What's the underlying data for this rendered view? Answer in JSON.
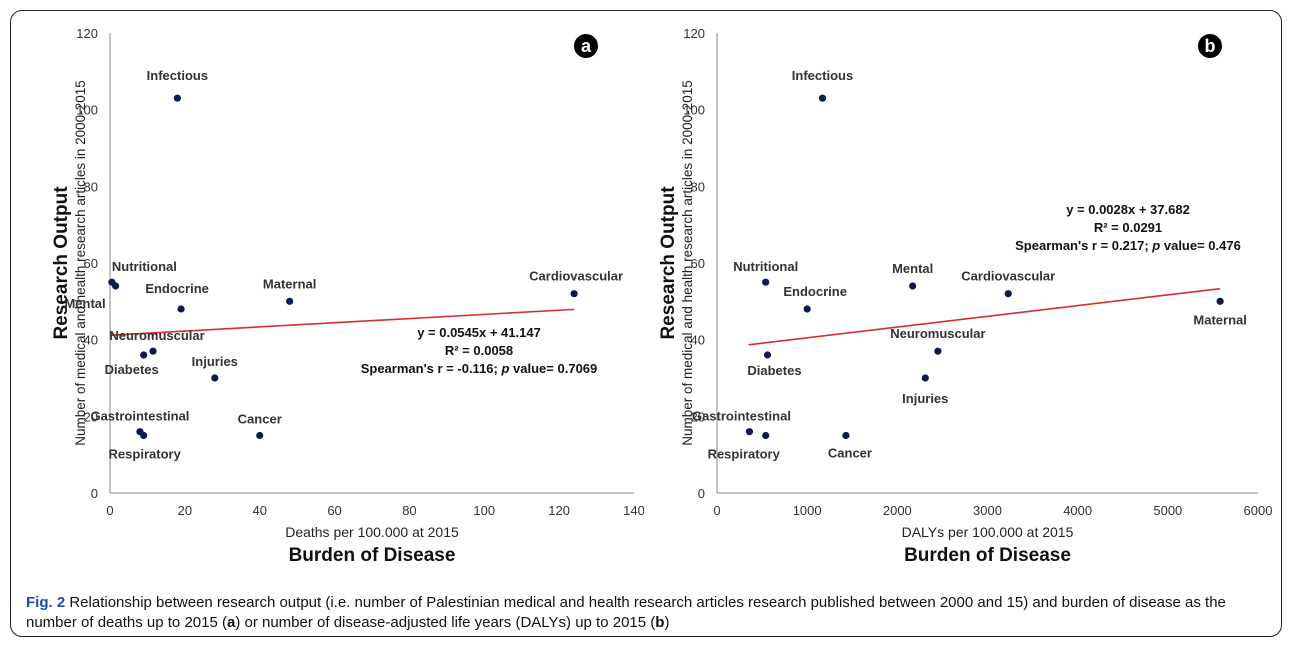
{
  "chart_data": [
    {
      "type": "scatter",
      "panel_label": "a",
      "ylabel_title": "Research Output",
      "ylabel": "Number of medical and health research articles in 2000-2015",
      "xlabel": "Deaths per 100.000 at 2015",
      "xlabel_title": "Burden of Disease",
      "xlim": [
        0,
        140
      ],
      "ylim": [
        0,
        120
      ],
      "xticks": [
        0,
        20,
        40,
        60,
        80,
        100,
        120,
        140
      ],
      "yticks": [
        0,
        20,
        40,
        60,
        80,
        100,
        120
      ],
      "grid": false,
      "point_color": "#0d1b4c",
      "trend_color": "#d0312d",
      "points": [
        {
          "label": "Infectious",
          "x": 18,
          "y": 103
        },
        {
          "label": "Nutritional",
          "x": 0.5,
          "y": 55
        },
        {
          "label": "Mental",
          "x": 1.5,
          "y": 54
        },
        {
          "label": "Endocrine",
          "x": 19,
          "y": 48
        },
        {
          "label": "Maternal",
          "x": 48,
          "y": 50
        },
        {
          "label": "Cardiovascular",
          "x": 124,
          "y": 52
        },
        {
          "label": "Neuromuscular",
          "x": 11.5,
          "y": 37
        },
        {
          "label": "Diabetes",
          "x": 9,
          "y": 36
        },
        {
          "label": "Injuries",
          "x": 28,
          "y": 30
        },
        {
          "label": "Gastrointestinal",
          "x": 8,
          "y": 16
        },
        {
          "label": "Respiratory",
          "x": 9,
          "y": 15
        },
        {
          "label": "Cancer",
          "x": 40,
          "y": 15
        }
      ],
      "trendline": {
        "slope": 0.0545,
        "intercept": 41.147,
        "x_range": [
          0,
          124
        ]
      },
      "annotation": {
        "equation": "y = 0.0545x + 41.147",
        "r2": "R² = 0.0058",
        "spearman_pre": "Spearman's r = -0.116; ",
        "spearman_p": "p",
        "spearman_post": " value= 0.7069"
      }
    },
    {
      "type": "scatter",
      "panel_label": "b",
      "ylabel_title": "Research Output",
      "ylabel": "Number of medical and health research articles in 2000-2015",
      "xlabel": "DALYs per 100.000 at 2015",
      "xlabel_title": "Burden of Disease",
      "xlim": [
        0,
        6000
      ],
      "ylim": [
        0,
        120
      ],
      "xticks": [
        0,
        1000,
        2000,
        3000,
        4000,
        5000,
        6000
      ],
      "yticks": [
        0,
        20,
        40,
        60,
        80,
        100,
        120
      ],
      "grid": false,
      "point_color": "#0d1b4c",
      "trend_color": "#d0312d",
      "points": [
        {
          "label": "Infectious",
          "x": 1170,
          "y": 103
        },
        {
          "label": "Nutritional",
          "x": 540,
          "y": 55
        },
        {
          "label": "Endocrine",
          "x": 1000,
          "y": 48
        },
        {
          "label": "Mental",
          "x": 2170,
          "y": 54
        },
        {
          "label": "Cardiovascular",
          "x": 3230,
          "y": 52
        },
        {
          "label": "Maternal",
          "x": 5580,
          "y": 50
        },
        {
          "label": "Diabetes",
          "x": 560,
          "y": 36
        },
        {
          "label": "Neuromuscular",
          "x": 2450,
          "y": 37
        },
        {
          "label": "Injuries",
          "x": 2310,
          "y": 30
        },
        {
          "label": "Gastrointestinal",
          "x": 360,
          "y": 16
        },
        {
          "label": "Respiratory",
          "x": 540,
          "y": 15
        },
        {
          "label": "Cancer",
          "x": 1430,
          "y": 15
        }
      ],
      "trendline": {
        "slope": 0.0028,
        "intercept": 37.682,
        "x_range": [
          350,
          5580
        ]
      },
      "annotation": {
        "equation": "y = 0.0028x + 37.682",
        "r2": "R² = 0.0291",
        "spearman_pre": "Spearman's r = 0.217; ",
        "spearman_p": "p",
        "spearman_post": " value= 0.476"
      }
    }
  ],
  "caption": {
    "fig_label": "Fig. 2",
    "text_1": " Relationship between research output (i.e. number of Palestinian medical and health research articles research published between 2000 and 15) and burden of disease as the number of deaths up to 2015 (",
    "ref_a": "a",
    "text_2": ") or number of disease-adjusted life years (DALYs) up to 2015 (",
    "ref_b": "b",
    "text_3": ")"
  }
}
